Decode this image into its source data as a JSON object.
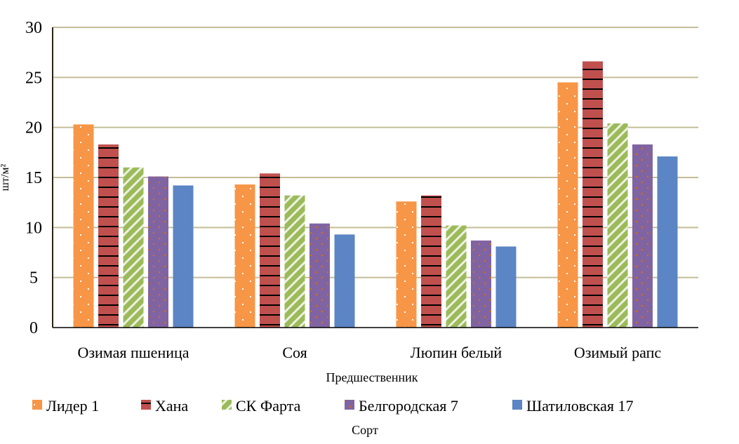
{
  "chart_data": {
    "type": "bar",
    "title": "",
    "xlabel": "Предшественник",
    "ylabel": "шт/м²",
    "legend_title": "Сорт",
    "legend_position": "bottom",
    "ylim": [
      0,
      30
    ],
    "yticks": [
      0,
      5,
      10,
      15,
      20,
      25,
      30
    ],
    "grid": true,
    "categories": [
      "Озимая пшеница",
      "Соя",
      "Люпин белый",
      "Озимый рапс"
    ],
    "series": [
      {
        "name": "Лидер 1",
        "color": "#F79646",
        "pattern": "dots",
        "values": [
          20.3,
          14.3,
          12.6,
          24.5
        ]
      },
      {
        "name": "Хана",
        "color": "#C0504D",
        "pattern": "horizontal-stripes",
        "values": [
          18.3,
          15.4,
          13.2,
          26.6
        ]
      },
      {
        "name": "СК Фарта",
        "color": "#9BBB59",
        "pattern": "diagonal-stripes",
        "values": [
          16.0,
          13.2,
          10.2,
          20.4
        ]
      },
      {
        "name": "Белгородская 7",
        "color": "#8064A2",
        "pattern": "confetti",
        "values": [
          15.1,
          10.4,
          8.7,
          18.3
        ]
      },
      {
        "name": "Шатиловская 17",
        "color": "#4F81BD",
        "pattern": "solid",
        "values": [
          14.2,
          9.3,
          8.1,
          17.1
        ]
      }
    ]
  }
}
